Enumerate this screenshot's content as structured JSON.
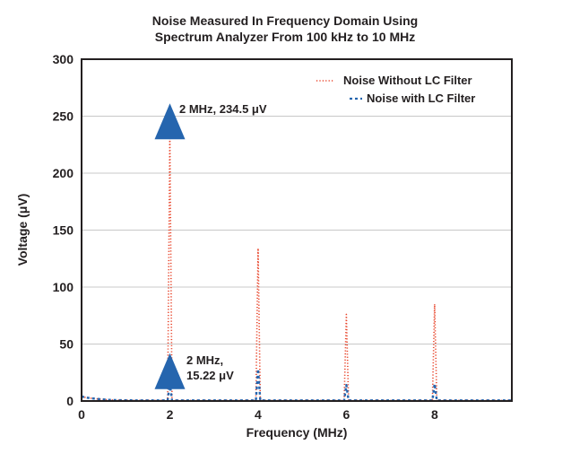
{
  "chart_data": {
    "type": "line",
    "title": [
      "Noise Measured In Frequency Domain Using",
      "Spectrum Analyzer From 100 kHz to 10 MHz"
    ],
    "xlabel": "Frequency (MHz)",
    "ylabel": "Voltage (μV)",
    "xlim": [
      0,
      9.75
    ],
    "ylim": [
      0,
      300
    ],
    "xticks": [
      0,
      2,
      4,
      6,
      8
    ],
    "yticks": [
      0,
      50,
      100,
      150,
      200,
      250,
      300
    ],
    "grid": "horizontal",
    "legend_position": "top-right",
    "series": [
      {
        "name": "Noise Without LC Filter",
        "color": "#e8442a",
        "style": "dotted",
        "points": [
          [
            0,
            4
          ],
          [
            0.1,
            3
          ],
          [
            0.3,
            2
          ],
          [
            0.6,
            1
          ],
          [
            1.0,
            0.6
          ],
          [
            1.95,
            0.5
          ],
          [
            2,
            234.5
          ],
          [
            2.05,
            0.5
          ],
          [
            3.95,
            0.5
          ],
          [
            4,
            134
          ],
          [
            4.05,
            0.5
          ],
          [
            5.95,
            0.5
          ],
          [
            6,
            76
          ],
          [
            6.05,
            0.5
          ],
          [
            7.95,
            0.5
          ],
          [
            8,
            85
          ],
          [
            8.05,
            0.5
          ],
          [
            9.75,
            0.5
          ]
        ]
      },
      {
        "name": "Noise with LC Filter",
        "color": "#2565ae",
        "style": "dashdot",
        "points": [
          [
            0,
            4
          ],
          [
            0.1,
            3
          ],
          [
            0.3,
            2
          ],
          [
            0.6,
            1
          ],
          [
            1.0,
            0.6
          ],
          [
            1.95,
            0.5
          ],
          [
            2,
            15.22
          ],
          [
            2.05,
            0.5
          ],
          [
            3.95,
            0.5
          ],
          [
            4,
            28
          ],
          [
            4.05,
            0.5
          ],
          [
            5.95,
            0.5
          ],
          [
            6,
            14
          ],
          [
            6.05,
            0.5
          ],
          [
            7.95,
            0.5
          ],
          [
            8,
            15
          ],
          [
            8.05,
            0.5
          ],
          [
            9.75,
            0.5
          ]
        ]
      }
    ],
    "annotations": [
      {
        "id": "peak-without-filter",
        "marker": "triangle",
        "color": "#2565ae",
        "x": 2,
        "y": 234.5,
        "lines": [
          "2 MHz, 234.5 μV"
        ]
      },
      {
        "id": "peak-with-filter",
        "marker": "triangle",
        "color": "#2565ae",
        "x": 2,
        "y": 15.22,
        "lines": [
          "2 MHz,",
          "15.22 μV"
        ]
      }
    ]
  }
}
